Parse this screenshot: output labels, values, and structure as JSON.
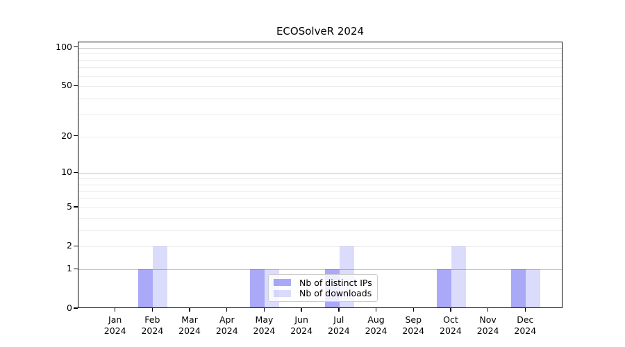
{
  "chart_data": {
    "type": "bar",
    "title": "ECOSolveR 2024",
    "categories": [
      "Jan",
      "Feb",
      "Mar",
      "Apr",
      "May",
      "Jun",
      "Jul",
      "Aug",
      "Sep",
      "Oct",
      "Nov",
      "Dec"
    ],
    "year": "2024",
    "series": [
      {
        "name": "Nb of distinct IPs",
        "color": "#a9a9f8",
        "fill": "rgba(10,10,235,0.35)",
        "values": [
          0,
          1,
          0,
          0,
          1,
          0,
          1,
          0,
          0,
          1,
          0,
          1
        ]
      },
      {
        "name": "Nb of downloads",
        "color": "#dcdcfa",
        "fill": "rgba(10,10,235,0.145)",
        "values": [
          0,
          2,
          0,
          0,
          1,
          0,
          2,
          0,
          0,
          2,
          0,
          1
        ]
      }
    ],
    "yticks": [
      0,
      1,
      2,
      5,
      10,
      20,
      50,
      100
    ],
    "scale": "log1p",
    "ylim": [
      0,
      110
    ],
    "xlabel": "",
    "ylabel": "",
    "grid": {
      "major_values": [
        1,
        10,
        100
      ],
      "minor_values": [
        2,
        3,
        4,
        5,
        6,
        7,
        8,
        9,
        20,
        30,
        40,
        50,
        60,
        70,
        80,
        90
      ],
      "major_color": "#c3c3c3",
      "minor_color": "#ebebeb"
    },
    "legend_position": "lower-center"
  }
}
